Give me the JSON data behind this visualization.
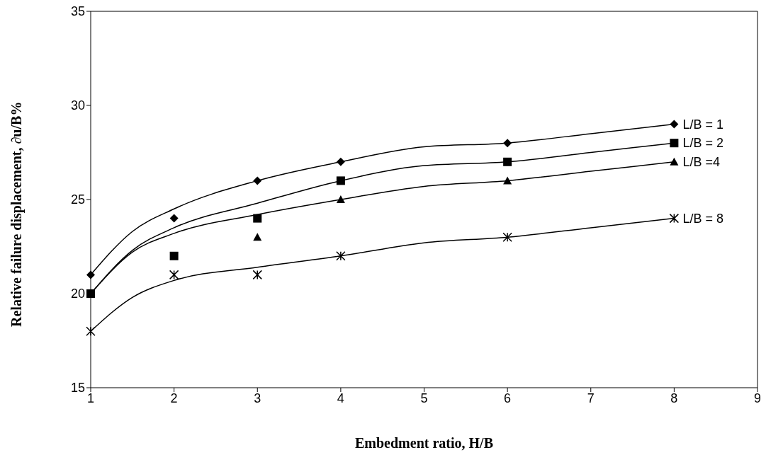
{
  "chart_data": {
    "type": "scatter",
    "xlabel": "Embedment ratio, H/B",
    "ylabel": "Relative failure displacement, ∂u/B%",
    "xlim": [
      1,
      9
    ],
    "xticks": [
      1,
      2,
      3,
      4,
      5,
      6,
      7,
      8,
      9
    ],
    "ylim": [
      15,
      35
    ],
    "yticks": [
      15,
      20,
      25,
      30,
      35
    ],
    "grid": false,
    "legend": false,
    "series": [
      {
        "name": "L/B = 1",
        "marker": "diamond",
        "color": "#000000",
        "x": [
          1,
          2,
          3,
          4,
          6,
          8
        ],
        "values": [
          21,
          24,
          26,
          27,
          28,
          29
        ]
      },
      {
        "name": "L/B = 2",
        "marker": "square",
        "color": "#000000",
        "x": [
          1,
          2,
          3,
          4,
          6,
          8
        ],
        "values": [
          20,
          22,
          24,
          26,
          27,
          28
        ]
      },
      {
        "name": "L/B =4",
        "marker": "triangle",
        "color": "#000000",
        "x": [
          3,
          4,
          6,
          8
        ],
        "values": [
          23,
          25,
          26,
          27
        ]
      },
      {
        "name": "L/B = 8",
        "marker": "cross",
        "color": "#000000",
        "x": [
          1,
          2,
          3,
          4,
          6,
          8
        ],
        "values": [
          18,
          21,
          21,
          22,
          23,
          24
        ]
      },
      {
        "type": "line",
        "marker": "none",
        "line_style": "solid",
        "color": "#000000",
        "x": [
          1,
          1.5,
          2,
          3,
          4,
          5,
          6,
          7,
          8
        ],
        "values": [
          21,
          23.3,
          24.5,
          26,
          27,
          27.8,
          28,
          28.5,
          29
        ]
      },
      {
        "type": "line",
        "marker": "none",
        "line_style": "solid",
        "color": "#000000",
        "x": [
          1,
          1.5,
          2,
          3,
          4,
          5,
          6,
          7,
          8
        ],
        "values": [
          20,
          22.3,
          23.5,
          24.8,
          26,
          26.8,
          27,
          27.5,
          28
        ]
      },
      {
        "type": "line",
        "marker": "none",
        "line_style": "solid",
        "color": "#000000",
        "x": [
          1,
          1.5,
          2,
          3,
          4,
          5,
          6,
          7,
          8
        ],
        "values": [
          20,
          22.2,
          23.2,
          24.2,
          25,
          25.7,
          26,
          26.5,
          27
        ]
      },
      {
        "type": "line",
        "marker": "none",
        "line_style": "solid",
        "color": "#000000",
        "x": [
          1,
          1.5,
          2,
          3,
          4,
          5,
          6,
          7,
          8
        ],
        "values": [
          18,
          19.8,
          20.7,
          21.4,
          22,
          22.7,
          23,
          23.5,
          24
        ]
      }
    ]
  }
}
